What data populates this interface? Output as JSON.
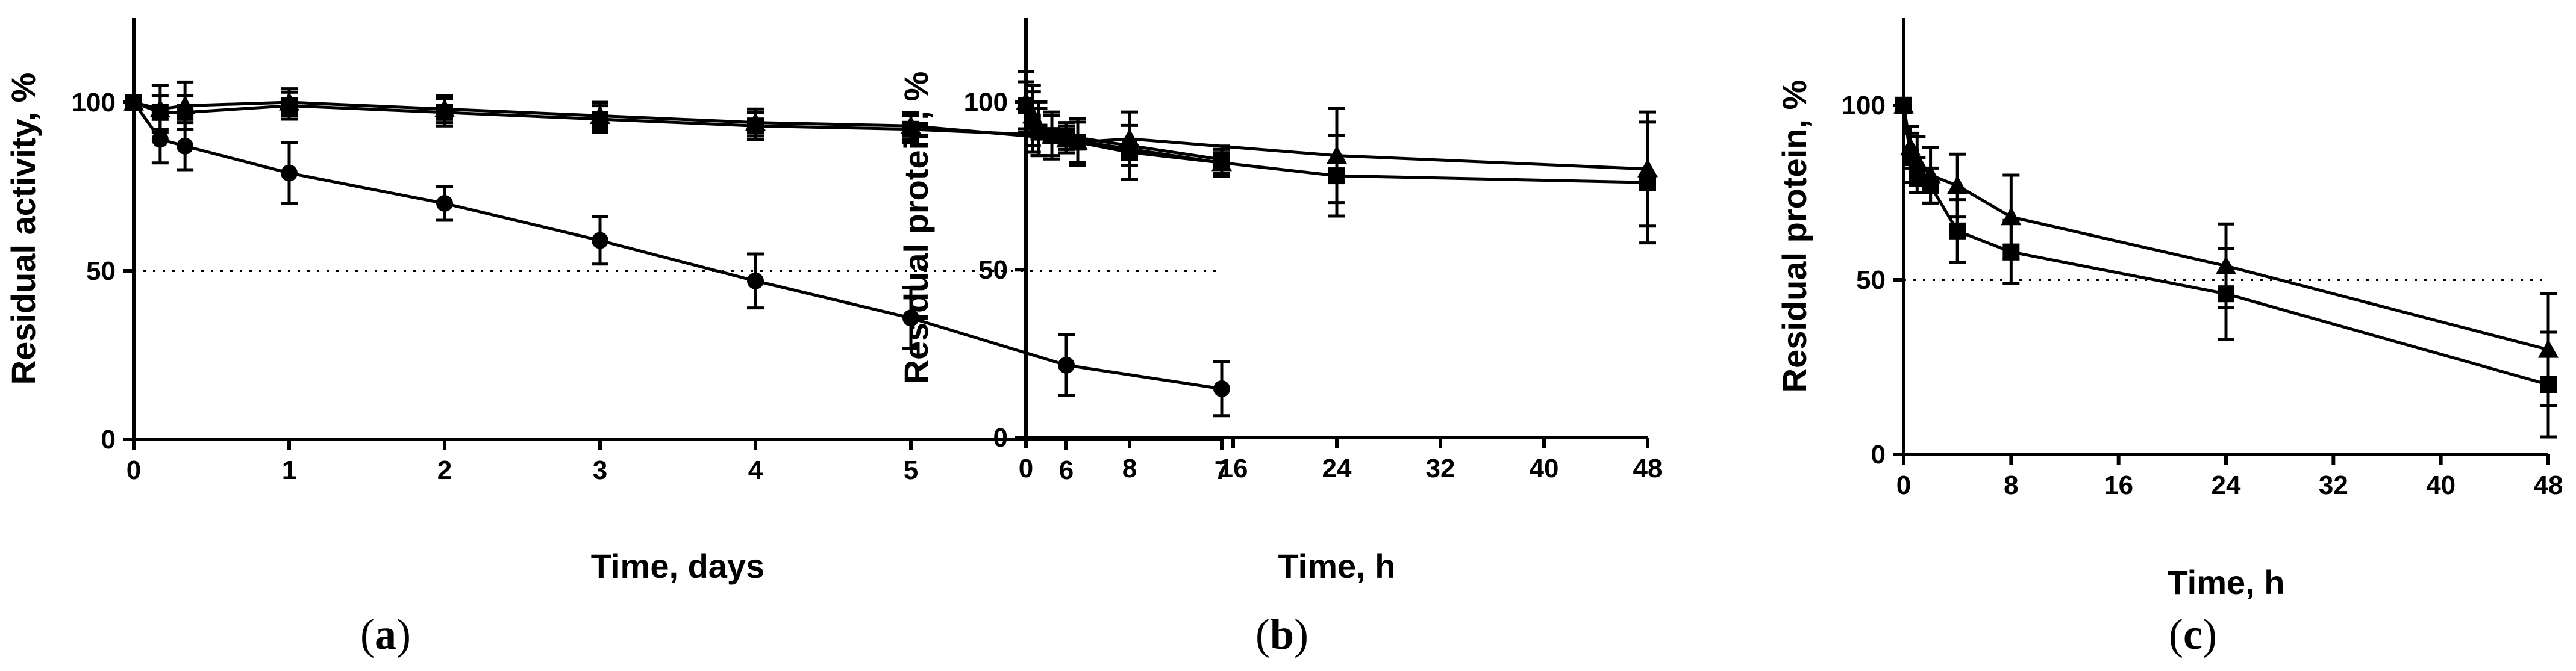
{
  "figure": {
    "panels": [
      {
        "id": "a",
        "label_prefix": "(",
        "label_letter": "a",
        "label_suffix": ")"
      },
      {
        "id": "b",
        "label_prefix": "(",
        "label_letter": "b",
        "label_suffix": ")"
      },
      {
        "id": "c",
        "label_prefix": "(",
        "label_letter": "c",
        "label_suffix": ")"
      }
    ]
  },
  "chart_data": [
    {
      "id": "a",
      "type": "line",
      "xlabel": "Time, days",
      "ylabel": "Residual activity, %",
      "xlim": [
        0,
        7
      ],
      "ylim": [
        0,
        125
      ],
      "xticks": [
        0,
        1,
        2,
        3,
        4,
        5,
        6,
        7
      ],
      "yticks": [
        0,
        50,
        100
      ],
      "reference_line": {
        "y": 50,
        "style": "dotted"
      },
      "grid": false,
      "legend": "none",
      "series": [
        {
          "marker": "square",
          "x": [
            0,
            0.17,
            0.33,
            1,
            2,
            3,
            4,
            5,
            6,
            7
          ],
          "y": [
            100,
            97,
            97,
            99,
            97,
            95,
            93,
            92,
            90,
            83
          ],
          "err": [
            2,
            5,
            5,
            4,
            4,
            4,
            4,
            4,
            4,
            4
          ]
        },
        {
          "marker": "triangle",
          "x": [
            0,
            0.17,
            0.33,
            1,
            2,
            3,
            4,
            5,
            6,
            7
          ],
          "y": [
            100,
            98,
            99,
            100,
            98,
            96,
            94,
            93,
            89,
            82
          ],
          "err": [
            2,
            7,
            7,
            4,
            4,
            4,
            4,
            4,
            4,
            4
          ]
        },
        {
          "marker": "circle",
          "x": [
            0,
            0.17,
            0.33,
            1,
            2,
            3,
            4,
            5,
            6,
            7
          ],
          "y": [
            100,
            89,
            87,
            79,
            70,
            59,
            47,
            36,
            22,
            15
          ],
          "err": [
            2,
            7,
            7,
            9,
            5,
            7,
            8,
            9,
            9,
            8
          ]
        }
      ]
    },
    {
      "id": "b",
      "type": "line",
      "xlabel": "Time, h",
      "ylabel": "Residual protein, %",
      "xlim": [
        0,
        48
      ],
      "ylim": [
        0,
        125
      ],
      "xticks": [
        0,
        8,
        16,
        24,
        32,
        40,
        48
      ],
      "yticks": [
        0,
        50,
        100
      ],
      "grid": false,
      "legend": "none",
      "series": [
        {
          "marker": "triangle",
          "x": [
            0,
            0.5,
            1,
            2,
            4,
            8,
            24,
            48
          ],
          "y": [
            100,
            96,
            92,
            90,
            88,
            89,
            84,
            80
          ],
          "err": [
            9,
            9,
            8,
            7,
            7,
            8,
            14,
            17
          ]
        },
        {
          "marker": "square",
          "x": [
            0,
            0.5,
            1,
            2,
            4,
            8,
            24,
            48
          ],
          "y": [
            99,
            94,
            91,
            90,
            88,
            85,
            78,
            76
          ],
          "err": [
            7,
            9,
            7,
            6,
            6,
            8,
            12,
            18
          ]
        }
      ]
    },
    {
      "id": "c",
      "type": "line",
      "xlabel": "Time, h",
      "ylabel": "Residual protein, %",
      "xlim": [
        0,
        48
      ],
      "ylim": [
        0,
        125
      ],
      "xticks": [
        0,
        8,
        16,
        24,
        32,
        40,
        48
      ],
      "yticks": [
        0,
        50,
        100
      ],
      "reference_line": {
        "y": 50,
        "style": "dotted"
      },
      "grid": false,
      "legend": "none",
      "series": [
        {
          "marker": "triangle",
          "x": [
            0,
            0.5,
            1,
            2,
            4,
            8,
            24,
            48
          ],
          "y": [
            100,
            88,
            84,
            80,
            77,
            68,
            54,
            30
          ],
          "err": [
            2,
            6,
            7,
            8,
            9,
            12,
            12,
            16
          ]
        },
        {
          "marker": "square",
          "x": [
            0,
            0.5,
            1,
            2,
            4,
            8,
            24,
            48
          ],
          "y": [
            100,
            85,
            80,
            77,
            64,
            58,
            46,
            20
          ],
          "err": [
            2,
            7,
            5,
            5,
            9,
            9,
            13,
            15
          ]
        }
      ]
    }
  ]
}
